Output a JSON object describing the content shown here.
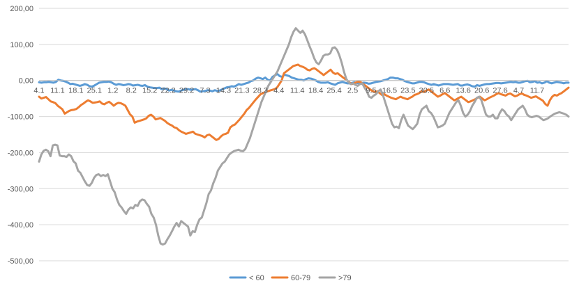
{
  "chart_data": {
    "type": "line",
    "title": "",
    "xlabel": "",
    "ylabel": "",
    "ylim": [
      -500,
      200
    ],
    "yticks": [
      "200,00",
      "100,00",
      "0,00",
      "-100,00",
      "-200,00",
      "-300,00",
      "-400,00",
      "-500,00"
    ],
    "ytick_values": [
      200,
      100,
      0,
      -100,
      -200,
      -300,
      -400,
      -500
    ],
    "x_tick_labels": [
      "4.1",
      "11.1",
      "18.1",
      "25.1",
      "1.2",
      "8.2",
      "15.2",
      "22.2",
      "29.2",
      "7.3",
      "14.3",
      "21.3",
      "28.3",
      "4.4",
      "11.4",
      "18.4",
      "25.4",
      "2.5",
      "9.5",
      "16.5",
      "23.5",
      "30.5",
      "6.6",
      "13.6",
      "20.6",
      "27.6",
      "4.7",
      "11.7"
    ],
    "grid": true,
    "legend_position": "bottom",
    "series": [
      {
        "name": "< 60",
        "color": "#5B9BD5",
        "values": [
          -5,
          -6,
          -5,
          -5,
          -4,
          -5,
          -6,
          -4,
          2,
          0,
          -1,
          -3,
          -6,
          -10,
          -9,
          -11,
          -13,
          -15,
          -13,
          -10,
          -12,
          -16,
          -17,
          -14,
          -10,
          -6,
          -5,
          -4,
          -4,
          -3,
          -5,
          -9,
          -12,
          -10,
          -11,
          -13,
          -12,
          -10,
          -11,
          -14,
          -13,
          -12,
          -14,
          -15,
          -13,
          -17,
          -19,
          -20,
          -21,
          -21,
          -20,
          -24,
          -22,
          -24,
          -28,
          -26,
          -28,
          -30,
          -31,
          -28,
          -26,
          -24,
          -24,
          -26,
          -25,
          -24,
          -27,
          -31,
          -30,
          -29,
          -27,
          -28,
          -30,
          -27,
          -29,
          -28,
          -25,
          -22,
          -19,
          -18,
          -16,
          -17,
          -14,
          -10,
          -12,
          -10,
          -8,
          -6,
          -2,
          0,
          5,
          8,
          6,
          4,
          8,
          2,
          0,
          10,
          14,
          18,
          12,
          10,
          16,
          14,
          12,
          8,
          6,
          4,
          2,
          2,
          0,
          4,
          6,
          5,
          3,
          0,
          -4,
          -6,
          -6,
          -6,
          -5,
          -8,
          -10,
          -12,
          -8,
          -6,
          -4,
          -6,
          -8,
          -8,
          -7,
          -5,
          -7,
          -8,
          -7,
          -6,
          -7,
          -9,
          -8,
          -6,
          -4,
          -3,
          -2,
          0,
          2,
          4,
          8,
          8,
          6,
          6,
          4,
          2,
          -2,
          -4,
          -6,
          -8,
          -8,
          -6,
          -4,
          -4,
          -5,
          -8,
          -10,
          -12,
          -10,
          -12,
          -14,
          -12,
          -10,
          -10,
          -10,
          -11,
          -12,
          -11,
          -10,
          -14,
          -14,
          -12,
          -11,
          -13,
          -16,
          -17,
          -13,
          -15,
          -13,
          -11,
          -10,
          -10,
          -9,
          -8,
          -7,
          -7,
          -8,
          -7,
          -6,
          -5,
          -4,
          -5,
          -4,
          -6,
          -6,
          -4,
          -2,
          -1,
          -5,
          -4,
          -2,
          -6,
          -5,
          -8,
          -6,
          -2,
          -6,
          -8,
          -6,
          -4,
          -5,
          -6,
          -8,
          -6,
          -6
        ]
      },
      {
        "name": "60-79",
        "color": "#ED7D31",
        "values": [
          -45,
          -50,
          -48,
          -46,
          -52,
          -58,
          -60,
          -63,
          -70,
          -75,
          -80,
          -92,
          -88,
          -84,
          -82,
          -81,
          -79,
          -74,
          -68,
          -64,
          -59,
          -55,
          -58,
          -62,
          -61,
          -60,
          -58,
          -64,
          -66,
          -62,
          -59,
          -64,
          -70,
          -65,
          -62,
          -63,
          -66,
          -70,
          -82,
          -94,
          -100,
          -117,
          -114,
          -112,
          -110,
          -108,
          -105,
          -98,
          -95,
          -100,
          -108,
          -106,
          -104,
          -108,
          -112,
          -118,
          -122,
          -125,
          -130,
          -132,
          -138,
          -142,
          -145,
          -148,
          -146,
          -144,
          -142,
          -148,
          -150,
          -152,
          -154,
          -158,
          -152,
          -150,
          -155,
          -160,
          -165,
          -162,
          -155,
          -150,
          -148,
          -145,
          -130,
          -125,
          -122,
          -115,
          -108,
          -100,
          -92,
          -82,
          -76,
          -68,
          -60,
          -52,
          -45,
          -38,
          -35,
          -32,
          -30,
          -28,
          -26,
          -24,
          -20,
          -10,
          0,
          20,
          25,
          30,
          35,
          40,
          42,
          44,
          40,
          38,
          35,
          30,
          28,
          32,
          34,
          30,
          25,
          20,
          15,
          20,
          25,
          30,
          22,
          18,
          20,
          15,
          10,
          5,
          0,
          -5,
          -10,
          -8,
          -5,
          -3,
          -5,
          -10,
          -15,
          -20,
          -25,
          -30,
          -32,
          -30,
          -35,
          -40,
          -38,
          -42,
          -45,
          -48,
          -50,
          -52,
          -48,
          -45,
          -48,
          -50,
          -52,
          -48,
          -45,
          -40,
          -38,
          -35,
          -30,
          -32,
          -28,
          -25,
          -30,
          -35,
          -40,
          -45,
          -42,
          -38,
          -35,
          -40,
          -45,
          -50,
          -55,
          -52,
          -48,
          -45,
          -50,
          -55,
          -60,
          -58,
          -55,
          -52,
          -48,
          -45,
          -50,
          -55,
          -52,
          -48,
          -45,
          -42,
          -38,
          -35,
          -38,
          -40,
          -42,
          -38,
          -36,
          -40,
          -44,
          -42,
          -38,
          -36,
          -40,
          -42,
          -45,
          -48,
          -46,
          -44,
          -48,
          -52,
          -56,
          -65,
          -70,
          -55,
          -45,
          -40,
          -42,
          -38,
          -35,
          -30,
          -25,
          -20
        ]
      },
      {
        "name": ">79",
        "color": "#A5A5A5",
        "values": [
          -225,
          -205,
          -195,
          -192,
          -196,
          -210,
          -180,
          -178,
          -180,
          -208,
          -210,
          -210,
          -212,
          -205,
          -210,
          -224,
          -230,
          -250,
          -256,
          -268,
          -280,
          -290,
          -292,
          -284,
          -270,
          -262,
          -260,
          -265,
          -262,
          -265,
          -260,
          -280,
          -300,
          -310,
          -330,
          -345,
          -352,
          -362,
          -370,
          -358,
          -352,
          -355,
          -345,
          -348,
          -335,
          -330,
          -332,
          -342,
          -350,
          -370,
          -380,
          -400,
          -430,
          -452,
          -455,
          -452,
          -440,
          -430,
          -418,
          -405,
          -395,
          -405,
          -390,
          -395,
          -400,
          -405,
          -430,
          -418,
          -420,
          -400,
          -385,
          -380,
          -360,
          -340,
          -315,
          -305,
          -285,
          -270,
          -250,
          -240,
          -230,
          -225,
          -215,
          -205,
          -200,
          -196,
          -194,
          -192,
          -195,
          -196,
          -190,
          -175,
          -160,
          -140,
          -120,
          -100,
          -80,
          -60,
          -45,
          -30,
          -15,
          -5,
          5,
          15,
          25,
          40,
          55,
          70,
          85,
          100,
          120,
          135,
          145,
          138,
          132,
          138,
          128,
          112,
          95,
          80,
          62,
          50,
          45,
          55,
          68,
          72,
          72,
          75,
          90,
          92,
          85,
          70,
          50,
          25,
          5,
          -5,
          -10,
          -8,
          -12,
          -15,
          -10,
          -8,
          -20,
          -30,
          -45,
          -48,
          -42,
          -38,
          -30,
          -25,
          -40,
          -60,
          -80,
          -100,
          -120,
          -130,
          -128,
          -132,
          -110,
          -95,
          -110,
          -125,
          -130,
          -135,
          -128,
          -120,
          -95,
          -80,
          -75,
          -70,
          -85,
          -90,
          -100,
          -115,
          -130,
          -128,
          -125,
          -120,
          -105,
          -90,
          -80,
          -70,
          -60,
          -55,
          -70,
          -90,
          -100,
          -95,
          -85,
          -70,
          -60,
          -48,
          -45,
          -55,
          -75,
          -95,
          -100,
          -100,
          -95,
          -105,
          -105,
          -90,
          -80,
          -85,
          -95,
          -100,
          -110,
          -100,
          -90,
          -80,
          -75,
          -70,
          -80,
          -95,
          -100,
          -102,
          -100,
          -98,
          -100,
          -105,
          -110,
          -108,
          -105,
          -100,
          -96,
          -92,
          -90,
          -88,
          -90,
          -92,
          -95,
          -100
        ]
      }
    ]
  }
}
